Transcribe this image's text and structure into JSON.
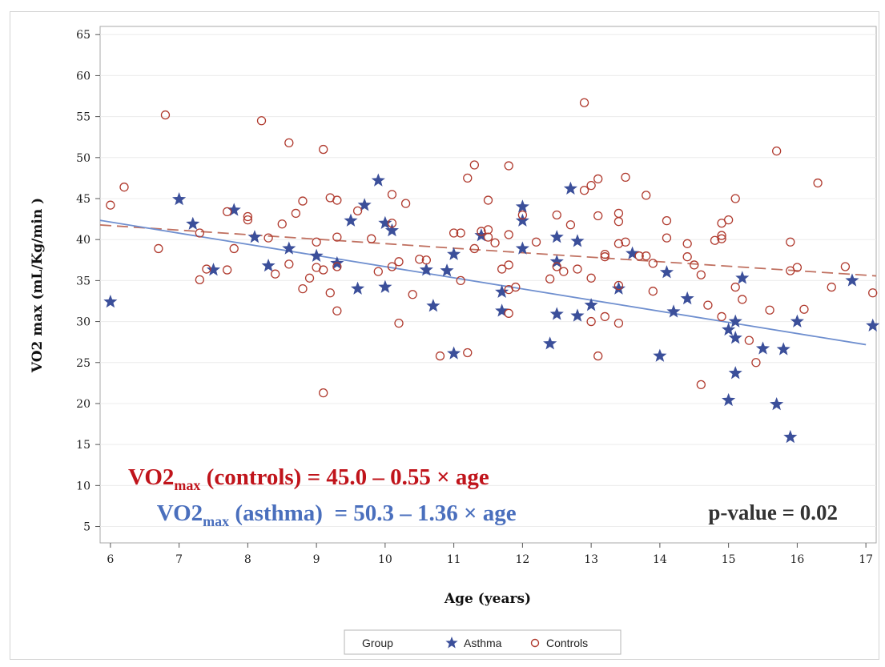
{
  "chart_data": {
    "type": "scatter",
    "title": "",
    "xlabel": "Age (years)",
    "ylabel": "VO2 max (mL/Kg/min )",
    "xlim": [
      5.85,
      17.15
    ],
    "ylim": [
      3,
      66
    ],
    "x_ticks": [
      6,
      7,
      8,
      9,
      10,
      11,
      12,
      13,
      14,
      15,
      16,
      17
    ],
    "y_ticks": [
      5,
      10,
      15,
      20,
      25,
      30,
      35,
      40,
      45,
      50,
      55,
      60,
      65
    ],
    "grid": "horizontal",
    "legend_position": "bottom",
    "legend": {
      "title": "Group",
      "entries": [
        "Asthma",
        "Controls"
      ]
    },
    "colors": {
      "asthma": "#3b4f9a",
      "controls": "#b03a2e",
      "asthma_line": "#6f8fcf",
      "controls_line": "#c07060",
      "eq_controls": "#c0141b",
      "eq_asthma": "#4a6fbd"
    },
    "series": [
      {
        "name": "Asthma",
        "marker": "star",
        "points": [
          [
            6.0,
            32.4
          ],
          [
            7.0,
            44.9
          ],
          [
            7.2,
            41.9
          ],
          [
            7.5,
            36.3
          ],
          [
            7.8,
            43.6
          ],
          [
            8.1,
            40.3
          ],
          [
            8.3,
            36.8
          ],
          [
            8.6,
            38.9
          ],
          [
            9.0,
            38.0
          ],
          [
            9.3,
            37.1
          ],
          [
            9.5,
            42.3
          ],
          [
            9.6,
            34.0
          ],
          [
            9.7,
            44.2
          ],
          [
            9.9,
            47.2
          ],
          [
            10.0,
            42.0
          ],
          [
            10.0,
            34.2
          ],
          [
            10.1,
            41.1
          ],
          [
            10.6,
            36.3
          ],
          [
            10.7,
            31.9
          ],
          [
            10.9,
            36.2
          ],
          [
            11.0,
            38.2
          ],
          [
            11.0,
            26.1
          ],
          [
            11.4,
            40.5
          ],
          [
            11.7,
            33.6
          ],
          [
            11.7,
            31.3
          ],
          [
            12.0,
            44.0
          ],
          [
            12.0,
            42.3
          ],
          [
            12.0,
            38.9
          ],
          [
            12.4,
            27.3
          ],
          [
            12.5,
            40.3
          ],
          [
            12.5,
            37.3
          ],
          [
            12.5,
            30.9
          ],
          [
            12.7,
            46.2
          ],
          [
            12.8,
            39.8
          ],
          [
            12.8,
            30.7
          ],
          [
            13.0,
            32.0
          ],
          [
            13.4,
            34.0
          ],
          [
            13.6,
            38.3
          ],
          [
            14.0,
            25.8
          ],
          [
            14.1,
            36.0
          ],
          [
            14.2,
            31.2
          ],
          [
            14.4,
            32.8
          ],
          [
            15.0,
            29.0
          ],
          [
            15.0,
            20.4
          ],
          [
            15.1,
            30.0
          ],
          [
            15.1,
            28.0
          ],
          [
            15.1,
            23.7
          ],
          [
            15.2,
            35.3
          ],
          [
            15.5,
            26.7
          ],
          [
            15.7,
            19.9
          ],
          [
            15.8,
            26.6
          ],
          [
            15.9,
            15.9
          ],
          [
            16.0,
            30.0
          ],
          [
            16.8,
            35.0
          ],
          [
            17.1,
            29.5
          ]
        ]
      },
      {
        "name": "Controls",
        "marker": "circle",
        "points": [
          [
            6.0,
            44.2
          ],
          [
            6.2,
            46.4
          ],
          [
            6.7,
            38.9
          ],
          [
            6.8,
            55.2
          ],
          [
            7.3,
            40.8
          ],
          [
            7.3,
            35.1
          ],
          [
            7.4,
            36.4
          ],
          [
            7.7,
            43.4
          ],
          [
            7.7,
            36.3
          ],
          [
            7.8,
            38.9
          ],
          [
            8.0,
            42.8
          ],
          [
            8.0,
            42.4
          ],
          [
            8.2,
            54.5
          ],
          [
            8.3,
            40.2
          ],
          [
            8.4,
            35.8
          ],
          [
            8.5,
            41.9
          ],
          [
            8.6,
            51.8
          ],
          [
            8.6,
            37.0
          ],
          [
            8.7,
            43.2
          ],
          [
            8.8,
            44.7
          ],
          [
            8.8,
            34.0
          ],
          [
            8.9,
            35.3
          ],
          [
            9.0,
            39.7
          ],
          [
            9.0,
            36.6
          ],
          [
            9.1,
            51.0
          ],
          [
            9.1,
            36.3
          ],
          [
            9.1,
            21.3
          ],
          [
            9.2,
            45.1
          ],
          [
            9.2,
            33.5
          ],
          [
            9.3,
            44.8
          ],
          [
            9.3,
            40.3
          ],
          [
            9.3,
            36.7
          ],
          [
            9.3,
            31.3
          ],
          [
            9.6,
            43.5
          ],
          [
            9.8,
            40.1
          ],
          [
            9.9,
            36.1
          ],
          [
            10.1,
            45.5
          ],
          [
            10.1,
            42.0
          ],
          [
            10.1,
            36.7
          ],
          [
            10.2,
            37.3
          ],
          [
            10.2,
            29.8
          ],
          [
            10.3,
            44.4
          ],
          [
            10.4,
            33.3
          ],
          [
            10.5,
            37.6
          ],
          [
            10.6,
            37.5
          ],
          [
            10.8,
            25.8
          ],
          [
            11.0,
            40.8
          ],
          [
            11.1,
            40.8
          ],
          [
            11.1,
            35.0
          ],
          [
            11.2,
            47.5
          ],
          [
            11.2,
            26.2
          ],
          [
            11.3,
            49.1
          ],
          [
            11.3,
            38.9
          ],
          [
            11.4,
            41.0
          ],
          [
            11.5,
            44.8
          ],
          [
            11.5,
            41.2
          ],
          [
            11.5,
            40.3
          ],
          [
            11.6,
            39.6
          ],
          [
            11.7,
            36.4
          ],
          [
            11.8,
            49.0
          ],
          [
            11.8,
            40.6
          ],
          [
            11.8,
            36.9
          ],
          [
            11.8,
            33.9
          ],
          [
            11.8,
            31.0
          ],
          [
            11.9,
            34.2
          ],
          [
            12.0,
            43.0
          ],
          [
            12.2,
            39.7
          ],
          [
            12.4,
            35.2
          ],
          [
            12.5,
            43.0
          ],
          [
            12.5,
            36.7
          ],
          [
            12.6,
            36.1
          ],
          [
            12.7,
            41.8
          ],
          [
            12.8,
            36.4
          ],
          [
            12.9,
            56.7
          ],
          [
            12.9,
            46.0
          ],
          [
            13.0,
            46.6
          ],
          [
            13.0,
            35.3
          ],
          [
            13.0,
            30.0
          ],
          [
            13.1,
            47.4
          ],
          [
            13.1,
            42.9
          ],
          [
            13.1,
            25.8
          ],
          [
            13.2,
            38.2
          ],
          [
            13.2,
            37.9
          ],
          [
            13.2,
            30.6
          ],
          [
            13.4,
            43.2
          ],
          [
            13.4,
            42.2
          ],
          [
            13.4,
            39.5
          ],
          [
            13.4,
            34.4
          ],
          [
            13.4,
            29.8
          ],
          [
            13.5,
            47.6
          ],
          [
            13.5,
            39.7
          ],
          [
            13.7,
            38.0
          ],
          [
            13.8,
            45.4
          ],
          [
            13.8,
            38.0
          ],
          [
            13.9,
            37.1
          ],
          [
            13.9,
            33.7
          ],
          [
            14.1,
            42.3
          ],
          [
            14.1,
            40.2
          ],
          [
            14.4,
            39.5
          ],
          [
            14.4,
            37.9
          ],
          [
            14.5,
            36.9
          ],
          [
            14.6,
            35.7
          ],
          [
            14.6,
            22.3
          ],
          [
            14.7,
            32.0
          ],
          [
            14.8,
            39.9
          ],
          [
            14.9,
            42.0
          ],
          [
            14.9,
            40.5
          ],
          [
            14.9,
            40.1
          ],
          [
            14.9,
            30.6
          ],
          [
            15.0,
            42.4
          ],
          [
            15.1,
            45.0
          ],
          [
            15.1,
            34.2
          ],
          [
            15.2,
            32.7
          ],
          [
            15.3,
            27.7
          ],
          [
            15.4,
            25.0
          ],
          [
            15.6,
            31.4
          ],
          [
            15.7,
            50.8
          ],
          [
            15.9,
            39.7
          ],
          [
            15.9,
            36.2
          ],
          [
            16.0,
            36.6
          ],
          [
            16.1,
            31.5
          ],
          [
            16.3,
            46.9
          ],
          [
            16.5,
            34.2
          ],
          [
            16.7,
            36.7
          ],
          [
            17.1,
            33.5
          ]
        ]
      }
    ],
    "fit_lines": [
      {
        "group": "controls",
        "style": "dashed",
        "intercept": 45.0,
        "slope": -0.55,
        "x_range": [
          5.85,
          17.15
        ]
      },
      {
        "group": "asthma",
        "style": "solid",
        "intercept": 50.3,
        "slope": -1.36,
        "x_range": [
          5.85,
          17.0
        ]
      }
    ],
    "annotations": {
      "controls_eq": {
        "main": "VO2",
        "sub": "max",
        "rest": " (controls) = 45.0 – 0.55 × age"
      },
      "asthma_eq": {
        "main": "VO2",
        "sub": "max",
        "rest": " (asthma)  = 50.3 – 1.36 × age"
      },
      "p_value": "p-value = 0.02"
    }
  }
}
